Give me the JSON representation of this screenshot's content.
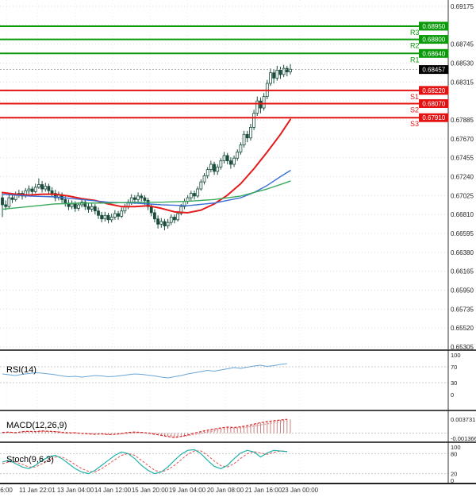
{
  "window": {
    "background": "#ffffff"
  },
  "chart_data": {
    "type": "candlestick",
    "title": "",
    "last_price": 0.68457,
    "candle_color": "#1b4d3e",
    "price_axis": {
      "max": 0.69175,
      "min": 0.65305,
      "step": 0.00215,
      "ticks": [
        0.69175,
        0.68745,
        0.6853,
        0.68315,
        0.67885,
        0.6767,
        0.67455,
        0.6724,
        0.67025,
        0.6681,
        0.66595,
        0.6638,
        0.66165,
        0.6595,
        0.65735,
        0.6552,
        0.65305
      ]
    },
    "time_axis": {
      "labels": [
        "6:00",
        "11 Jan 22:01",
        "13 Jan 04:00",
        "14 Jan 12:00",
        "15 Jan 20:00",
        "19 Jan 04:00",
        "20 Jan 08:00",
        "21 Jan 16:00",
        "23 Jan 00:00"
      ]
    },
    "pivot_levels": [
      {
        "name": "R3",
        "price": 0.6895,
        "color": "#0a9a0a"
      },
      {
        "name": "R2",
        "price": 0.688,
        "color": "#0a9a0a"
      },
      {
        "name": "R1",
        "price": 0.6864,
        "color": "#0a9a0a"
      },
      {
        "name": "S1",
        "price": 0.6822,
        "color": "#e51212"
      },
      {
        "name": "S2",
        "price": 0.6807,
        "color": "#e51212"
      },
      {
        "name": "S3",
        "price": 0.6791,
        "color": "#e51212"
      }
    ],
    "candles_ohlc_x10000": [
      [
        6700,
        6706,
        6678,
        6692
      ],
      [
        6692,
        6697,
        6686,
        6690
      ],
      [
        6690,
        6704,
        6688,
        6700
      ],
      [
        6700,
        6705,
        6694,
        6698
      ],
      [
        6698,
        6707,
        6696,
        6703
      ],
      [
        6703,
        6709,
        6700,
        6705
      ],
      [
        6705,
        6708,
        6698,
        6702
      ],
      [
        6702,
        6711,
        6700,
        6708
      ],
      [
        6708,
        6714,
        6704,
        6710
      ],
      [
        6710,
        6713,
        6703,
        6707
      ],
      [
        6707,
        6716,
        6705,
        6712
      ],
      [
        6712,
        6722,
        6710,
        6715
      ],
      [
        6715,
        6719,
        6706,
        6710
      ],
      [
        6710,
        6717,
        6707,
        6713
      ],
      [
        6713,
        6716,
        6704,
        6708
      ],
      [
        6708,
        6712,
        6701,
        6705
      ],
      [
        6705,
        6709,
        6696,
        6700
      ],
      [
        6700,
        6707,
        6697,
        6703
      ],
      [
        6703,
        6706,
        6694,
        6698
      ],
      [
        6698,
        6702,
        6690,
        6694
      ],
      [
        6694,
        6698,
        6686,
        6690
      ],
      [
        6690,
        6697,
        6687,
        6693
      ],
      [
        6693,
        6696,
        6684,
        6688
      ],
      [
        6688,
        6695,
        6685,
        6692
      ],
      [
        6692,
        6699,
        6689,
        6695
      ],
      [
        6695,
        6698,
        6686,
        6690
      ],
      [
        6690,
        6694,
        6683,
        6687
      ],
      [
        6687,
        6694,
        6684,
        6690
      ],
      [
        6690,
        6693,
        6681,
        6685
      ],
      [
        6685,
        6689,
        6676,
        6680
      ],
      [
        6680,
        6684,
        6672,
        6676
      ],
      [
        6676,
        6684,
        6673,
        6680
      ],
      [
        6680,
        6683,
        6671,
        6675
      ],
      [
        6675,
        6682,
        6672,
        6678
      ],
      [
        6678,
        6686,
        6675,
        6682
      ],
      [
        6682,
        6685,
        6675,
        6679
      ],
      [
        6679,
        6689,
        6677,
        6685
      ],
      [
        6685,
        6693,
        6682,
        6690
      ],
      [
        6690,
        6698,
        6687,
        6695
      ],
      [
        6695,
        6704,
        6692,
        6700
      ],
      [
        6700,
        6703,
        6693,
        6698
      ],
      [
        6698,
        6706,
        6695,
        6702
      ],
      [
        6702,
        6705,
        6696,
        6700
      ],
      [
        6700,
        6703,
        6692,
        6697
      ],
      [
        6697,
        6700,
        6686,
        6690
      ],
      [
        6690,
        6693,
        6679,
        6683
      ],
      [
        6683,
        6687,
        6672,
        6676
      ],
      [
        6676,
        6680,
        6665,
        6670
      ],
      [
        6670,
        6677,
        6666,
        6673
      ],
      [
        6673,
        6676,
        6663,
        6668
      ],
      [
        6668,
        6676,
        6665,
        6672
      ],
      [
        6672,
        6681,
        6669,
        6678
      ],
      [
        6678,
        6681,
        6671,
        6675
      ],
      [
        6675,
        6685,
        6673,
        6682
      ],
      [
        6682,
        6693,
        6680,
        6690
      ],
      [
        6690,
        6699,
        6687,
        6696
      ],
      [
        6696,
        6703,
        6693,
        6700
      ],
      [
        6700,
        6708,
        6697,
        6705
      ],
      [
        6705,
        6708,
        6698,
        6702
      ],
      [
        6702,
        6713,
        6700,
        6710
      ],
      [
        6710,
        6721,
        6708,
        6718
      ],
      [
        6718,
        6728,
        6715,
        6725
      ],
      [
        6725,
        6735,
        6722,
        6732
      ],
      [
        6732,
        6742,
        6729,
        6738
      ],
      [
        6738,
        6741,
        6726,
        6730
      ],
      [
        6730,
        6738,
        6726,
        6735
      ],
      [
        6735,
        6745,
        6732,
        6742
      ],
      [
        6742,
        6752,
        6739,
        6748
      ],
      [
        6748,
        6751,
        6738,
        6742
      ],
      [
        6742,
        6746,
        6733,
        6738
      ],
      [
        6738,
        6748,
        6735,
        6745
      ],
      [
        6745,
        6755,
        6742,
        6752
      ],
      [
        6752,
        6763,
        6749,
        6760
      ],
      [
        6760,
        6776,
        6757,
        6772
      ],
      [
        6772,
        6776,
        6763,
        6768
      ],
      [
        6768,
        6784,
        6765,
        6780
      ],
      [
        6780,
        6800,
        6777,
        6796
      ],
      [
        6796,
        6815,
        6793,
        6810
      ],
      [
        6810,
        6814,
        6796,
        6802
      ],
      [
        6802,
        6819,
        6799,
        6815
      ],
      [
        6815,
        6834,
        6812,
        6830
      ],
      [
        6830,
        6847,
        6827,
        6842
      ],
      [
        6842,
        6846,
        6830,
        6836
      ],
      [
        6836,
        6850,
        6833,
        6845
      ],
      [
        6845,
        6849,
        6835,
        6840
      ],
      [
        6840,
        6851,
        6837,
        6847
      ],
      [
        6847,
        6850,
        6838,
        6843
      ],
      [
        6843,
        6852,
        6840,
        6846
      ]
    ],
    "moving_averages": [
      {
        "name": "ma-red",
        "color": "#e51a1a",
        "width": 2,
        "points": [
          [
            0,
            6706
          ],
          [
            4,
            6704
          ],
          [
            8,
            6703
          ],
          [
            12,
            6704
          ],
          [
            16,
            6704
          ],
          [
            20,
            6702
          ],
          [
            24,
            6699
          ],
          [
            28,
            6697
          ],
          [
            32,
            6693
          ],
          [
            36,
            6690
          ],
          [
            40,
            6690
          ],
          [
            44,
            6691
          ],
          [
            48,
            6688
          ],
          [
            52,
            6684
          ],
          [
            56,
            6683
          ],
          [
            60,
            6686
          ],
          [
            64,
            6693
          ],
          [
            68,
            6703
          ],
          [
            72,
            6716
          ],
          [
            76,
            6733
          ],
          [
            80,
            6752
          ],
          [
            84,
            6772
          ],
          [
            87,
            6789
          ]
        ]
      },
      {
        "name": "ma-blue",
        "color": "#3b6fd4",
        "width": 1.4,
        "points": [
          [
            0,
            6704
          ],
          [
            8,
            6702
          ],
          [
            16,
            6701
          ],
          [
            24,
            6698
          ],
          [
            32,
            6695
          ],
          [
            40,
            6694
          ],
          [
            48,
            6692
          ],
          [
            56,
            6691
          ],
          [
            64,
            6694
          ],
          [
            72,
            6700
          ],
          [
            76,
            6706
          ],
          [
            80,
            6714
          ],
          [
            84,
            6724
          ],
          [
            87,
            6731
          ]
        ]
      },
      {
        "name": "ma-green",
        "color": "#3aaa5c",
        "width": 1.4,
        "points": [
          [
            0,
            6687
          ],
          [
            8,
            6690
          ],
          [
            16,
            6693
          ],
          [
            24,
            6694
          ],
          [
            32,
            6694
          ],
          [
            40,
            6695
          ],
          [
            48,
            6695
          ],
          [
            56,
            6696
          ],
          [
            64,
            6698
          ],
          [
            72,
            6702
          ],
          [
            76,
            6706
          ],
          [
            80,
            6710
          ],
          [
            84,
            6715
          ],
          [
            87,
            6719
          ]
        ]
      }
    ],
    "indicators": [
      {
        "name": "rsi",
        "label": "RSI(14)",
        "color": "#6aa7d8",
        "scale_values": [
          100,
          70,
          30,
          0
        ],
        "levels": [
          70,
          30
        ],
        "values": [
          52,
          50,
          48,
          51,
          53,
          55,
          54,
          52,
          50,
          47,
          45,
          46,
          44,
          46,
          48,
          47,
          45,
          46,
          48,
          50,
          52,
          51,
          49,
          47,
          44,
          42,
          45,
          48,
          52,
          55,
          58,
          61,
          59,
          62,
          65,
          68,
          66,
          69,
          72,
          74,
          71,
          73,
          76,
          78
        ]
      },
      {
        "name": "macd",
        "label": "MACD(12,26,9)",
        "color": "#d82020",
        "max": 0.003731,
        "min": -0.001366,
        "scale_labels": [
          "0.003731",
          "-0.001366"
        ],
        "macd": [
          2,
          3,
          1,
          4,
          5,
          4,
          6,
          5,
          4,
          2,
          0,
          1,
          -1,
          -2,
          -3,
          -2,
          -4,
          -3,
          -1,
          2,
          3,
          2,
          0,
          -3,
          -6,
          -9,
          -12,
          -9,
          -5,
          0,
          4,
          8,
          11,
          14,
          16,
          15,
          17,
          20,
          24,
          28,
          31,
          33,
          35,
          37
        ],
        "signal": [
          1,
          2,
          2,
          3,
          4,
          4,
          5,
          5,
          4,
          3,
          2,
          1,
          0,
          -1,
          -2,
          -2,
          -3,
          -3,
          -2,
          -1,
          1,
          2,
          1,
          0,
          -2,
          -5,
          -8,
          -9,
          -7,
          -4,
          -1,
          3,
          6,
          9,
          12,
          13,
          14,
          16,
          19,
          22,
          25,
          28,
          30,
          32
        ]
      },
      {
        "name": "stoch",
        "label": "Stoch(9,6,3)",
        "k_color": "#20b2aa",
        "d_color": "#e05050",
        "scale_values": [
          100,
          80,
          20,
          0
        ],
        "levels": [
          80,
          20
        ],
        "k": [
          55,
          60,
          50,
          40,
          35,
          45,
          60,
          70,
          75,
          65,
          50,
          35,
          25,
          20,
          30,
          45,
          60,
          75,
          85,
          80,
          65,
          45,
          30,
          20,
          25,
          40,
          60,
          78,
          90,
          92,
          80,
          60,
          42,
          35,
          45,
          65,
          82,
          90,
          85,
          70,
          82,
          90,
          88,
          86
        ],
        "d": [
          50,
          55,
          55,
          48,
          40,
          40,
          50,
          60,
          70,
          70,
          60,
          47,
          35,
          27,
          25,
          35,
          48,
          62,
          75,
          80,
          75,
          60,
          45,
          30,
          25,
          32,
          45,
          62,
          78,
          88,
          88,
          75,
          58,
          44,
          40,
          50,
          66,
          80,
          86,
          82,
          78,
          84,
          88,
          87
        ]
      }
    ]
  }
}
